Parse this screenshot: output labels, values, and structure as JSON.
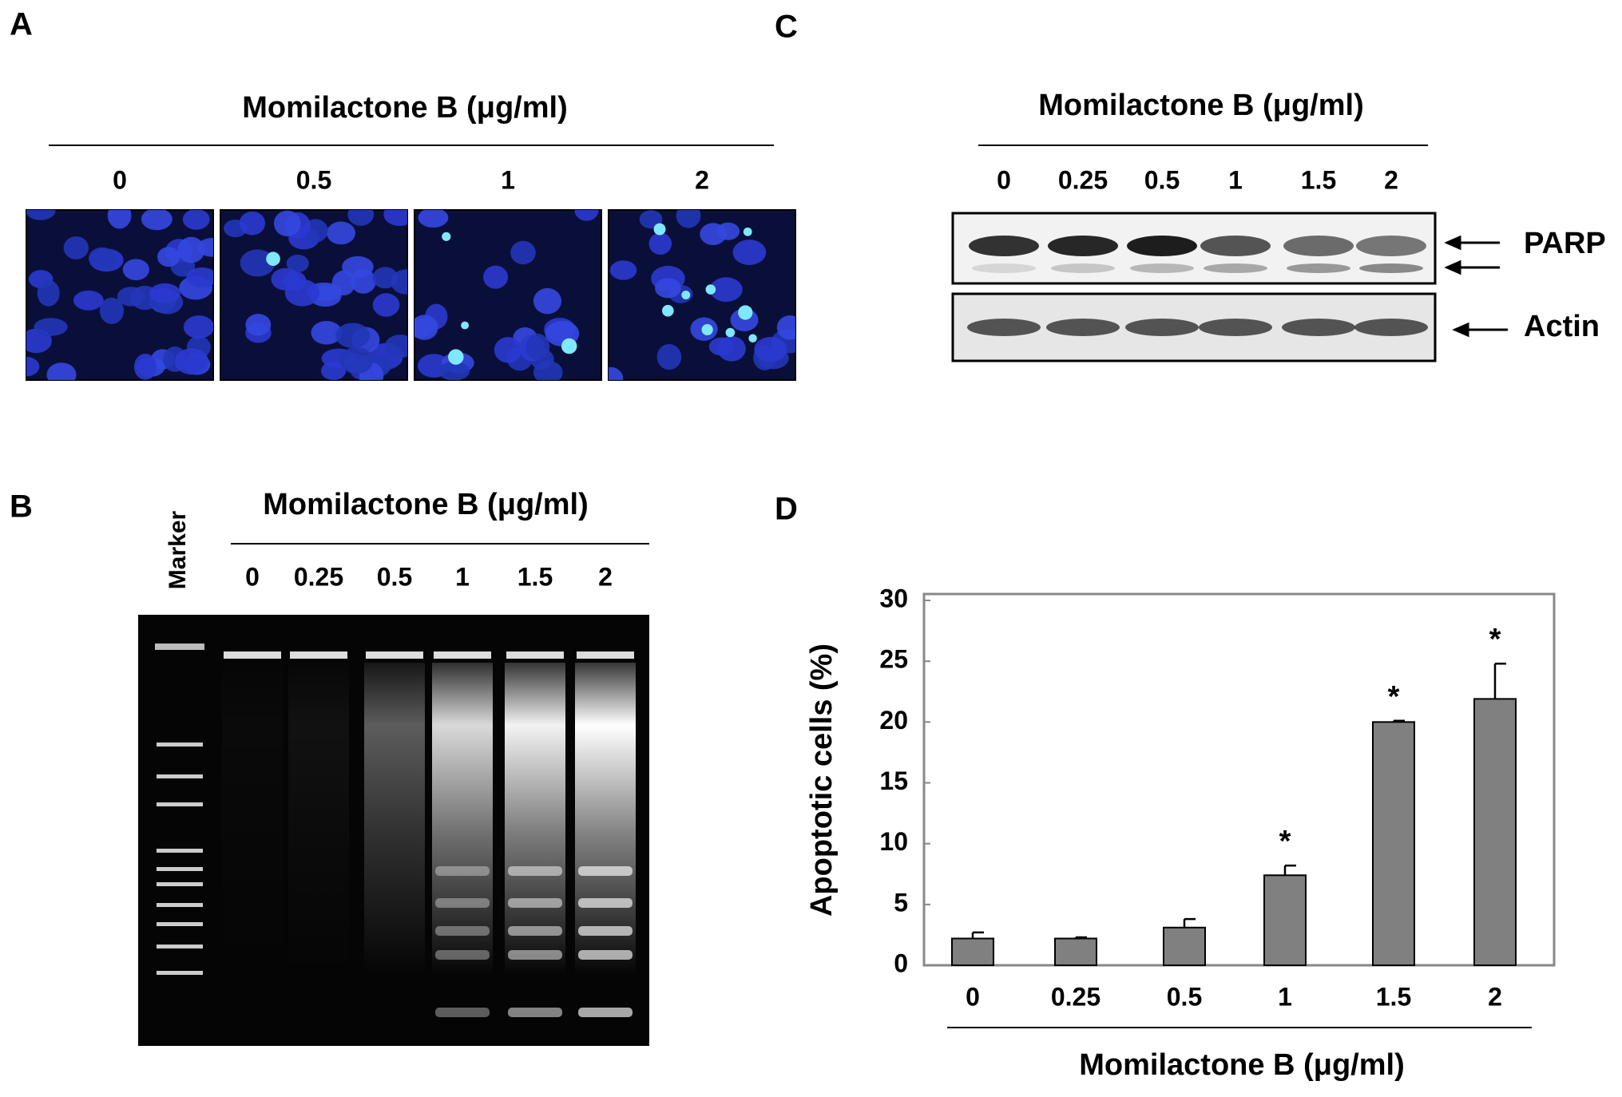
{
  "panels": {
    "A": {
      "label": "A",
      "title": "Momilactone B (μg/ml)",
      "doses": [
        "0",
        "0.5",
        "1",
        "2"
      ]
    },
    "B": {
      "label": "B",
      "title": "Momilactone B (μg/ml)",
      "marker": "Marker",
      "doses": [
        "0",
        "0.25",
        "0.5",
        "1",
        "1.5",
        "2"
      ]
    },
    "C": {
      "label": "C",
      "title": "Momilactone B (μg/ml)",
      "doses": [
        "0",
        "0.25",
        "0.5",
        "1",
        "1.5",
        "2"
      ],
      "bands": [
        "PARP",
        "Actin"
      ]
    },
    "D": {
      "label": "D"
    }
  },
  "chart_data": {
    "type": "bar",
    "x_label": "Momilactone B (μg/ml)",
    "y_label": "Apoptotic cells (%)",
    "categories": [
      "0",
      "0.25",
      "0.5",
      "1",
      "1.5",
      "2"
    ],
    "values": [
      2.2,
      2.2,
      3.1,
      7.4,
      20,
      21.9
    ],
    "errors": [
      0.5,
      0.1,
      0.7,
      0.8,
      0.1,
      2.9
    ],
    "significance": [
      null,
      null,
      null,
      "*",
      "*",
      "*"
    ],
    "color": "#808080",
    "ylim": [
      0,
      30
    ],
    "yticks": [
      0,
      5,
      10,
      15,
      20,
      25,
      30
    ]
  }
}
